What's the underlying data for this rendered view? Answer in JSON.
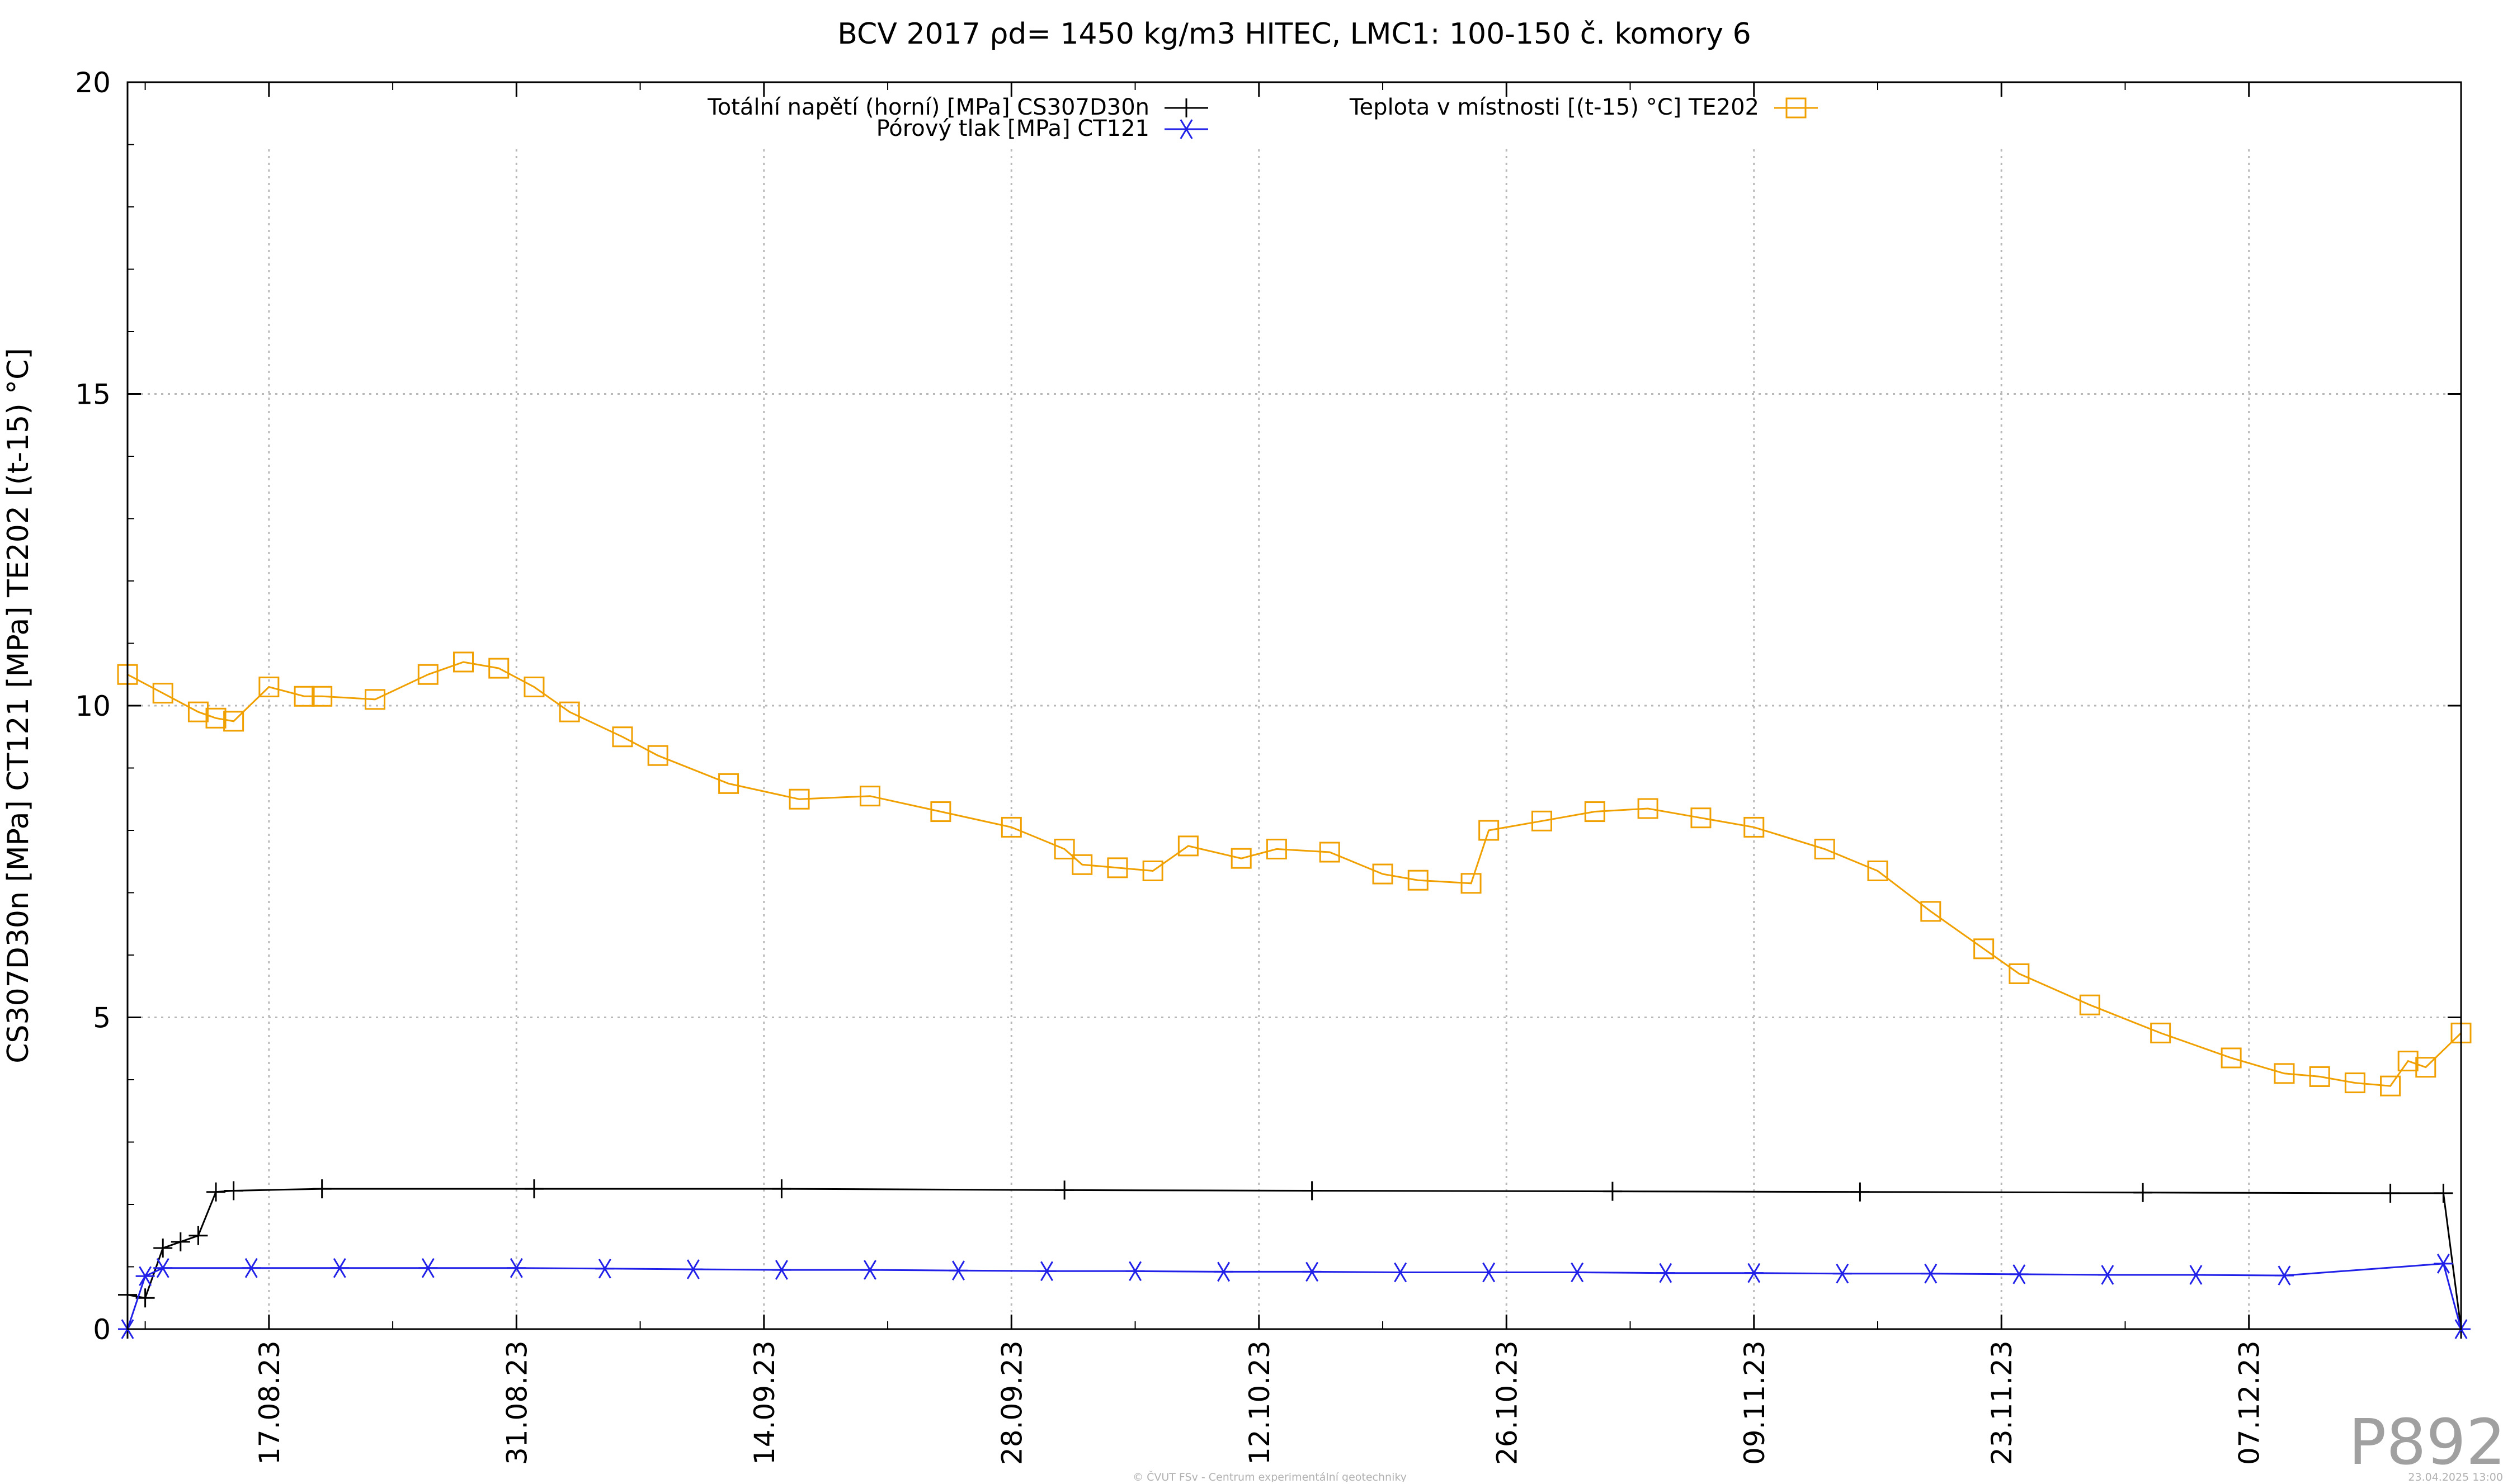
{
  "chart_data": {
    "type": "line",
    "title": "BCV 2017 ρd= 1450 kg/m3 HITEC, LMC1: 100-150 č. komory 6",
    "ylabel": "CS307D30n [MPa] CT121 [MPa] TE202 [(t-15) °C]",
    "xlabel": "",
    "ylim": [
      0,
      20
    ],
    "yticks": [
      "0",
      "5",
      "10",
      "15",
      "20"
    ],
    "yticks_values": [
      0,
      5,
      10,
      15,
      20
    ],
    "xlim": [
      "2023-08-09",
      "2023-12-19"
    ],
    "xticks": [
      "17.08.23",
      "31.08.23",
      "14.09.23",
      "28.09.23",
      "12.10.23",
      "26.10.23",
      "09.11.23",
      "23.11.23",
      "07.12.23"
    ],
    "xticks_dates": [
      "2023-08-17",
      "2023-08-31",
      "2023-09-14",
      "2023-09-28",
      "2023-10-12",
      "2023-10-26",
      "2023-11-09",
      "2023-11-23",
      "2023-12-07"
    ],
    "grid": true,
    "legend_position": "top",
    "series": [
      {
        "name": "Totální napětí (horní) [MPa] CS307D30n",
        "color": "#000000",
        "marker": "plus",
        "x": [
          "2023-08-09",
          "2023-08-09",
          "2023-08-10",
          "2023-08-11",
          "2023-08-12",
          "2023-08-13",
          "2023-08-14",
          "2023-08-15",
          "2023-08-20",
          "2023-09-01",
          "2023-09-15",
          "2023-10-01",
          "2023-10-15",
          "2023-11-01",
          "2023-11-15",
          "2023-12-01",
          "2023-12-15",
          "2023-12-18",
          "2023-12-19"
        ],
        "y": [
          0.0,
          0.55,
          0.5,
          1.3,
          1.4,
          1.5,
          2.2,
          2.22,
          2.25,
          2.25,
          2.25,
          2.23,
          2.22,
          2.21,
          2.2,
          2.19,
          2.18,
          2.18,
          0.0
        ]
      },
      {
        "name": "Pórový tlak [MPa] CT121",
        "color": "#2020e8",
        "marker": "asterisk",
        "x": [
          "2023-08-09",
          "2023-08-10",
          "2023-08-11",
          "2023-08-16",
          "2023-08-21",
          "2023-08-26",
          "2023-08-31",
          "2023-09-05",
          "2023-09-10",
          "2023-09-15",
          "2023-09-20",
          "2023-09-25",
          "2023-09-30",
          "2023-10-05",
          "2023-10-10",
          "2023-10-15",
          "2023-10-20",
          "2023-10-25",
          "2023-10-30",
          "2023-11-04",
          "2023-11-09",
          "2023-11-14",
          "2023-11-19",
          "2023-11-24",
          "2023-11-29",
          "2023-12-04",
          "2023-12-09",
          "2023-12-18",
          "2023-12-19"
        ],
        "y": [
          0.0,
          0.85,
          0.98,
          0.98,
          0.98,
          0.98,
          0.98,
          0.97,
          0.96,
          0.95,
          0.95,
          0.94,
          0.93,
          0.93,
          0.92,
          0.92,
          0.91,
          0.91,
          0.91,
          0.9,
          0.9,
          0.89,
          0.89,
          0.88,
          0.87,
          0.87,
          0.86,
          1.05,
          0.0
        ]
      },
      {
        "name": "Teplota v místnosti [(t-15) °C] TE202",
        "color": "#f0a000",
        "marker": "square",
        "x": [
          "2023-08-09",
          "2023-08-11",
          "2023-08-13",
          "2023-08-14",
          "2023-08-15",
          "2023-08-17",
          "2023-08-19",
          "2023-08-20",
          "2023-08-23",
          "2023-08-26",
          "2023-08-28",
          "2023-08-30",
          "2023-09-01",
          "2023-09-03",
          "2023-09-06",
          "2023-09-08",
          "2023-09-12",
          "2023-09-16",
          "2023-09-20",
          "2023-09-24",
          "2023-09-28",
          "2023-10-01",
          "2023-10-02",
          "2023-10-04",
          "2023-10-06",
          "2023-10-08",
          "2023-10-11",
          "2023-10-13",
          "2023-10-16",
          "2023-10-19",
          "2023-10-21",
          "2023-10-24",
          "2023-10-25",
          "2023-10-28",
          "2023-10-31",
          "2023-11-03",
          "2023-11-06",
          "2023-11-09",
          "2023-11-13",
          "2023-11-16",
          "2023-11-19",
          "2023-11-22",
          "2023-11-24",
          "2023-11-28",
          "2023-12-02",
          "2023-12-06",
          "2023-12-09",
          "2023-12-11",
          "2023-12-13",
          "2023-12-15",
          "2023-12-16",
          "2023-12-17",
          "2023-12-19"
        ],
        "y": [
          10.5,
          10.2,
          9.9,
          9.8,
          9.75,
          10.3,
          10.15,
          10.15,
          10.1,
          10.5,
          10.7,
          10.6,
          10.3,
          9.9,
          9.5,
          9.2,
          8.75,
          8.5,
          8.55,
          8.3,
          8.05,
          7.7,
          7.45,
          7.4,
          7.35,
          7.75,
          7.55,
          7.7,
          7.65,
          7.3,
          7.2,
          7.15,
          8.0,
          8.15,
          8.3,
          8.35,
          8.2,
          8.05,
          7.7,
          7.35,
          6.7,
          6.1,
          5.7,
          5.2,
          4.75,
          4.35,
          4.1,
          4.05,
          3.95,
          3.9,
          4.3,
          4.2,
          4.75
        ]
      }
    ]
  },
  "watermark": "P892",
  "footer": {
    "left": "© ČVUT FSv - Centrum experimentální geotechniky",
    "right": "23.04.2025 13:00"
  }
}
